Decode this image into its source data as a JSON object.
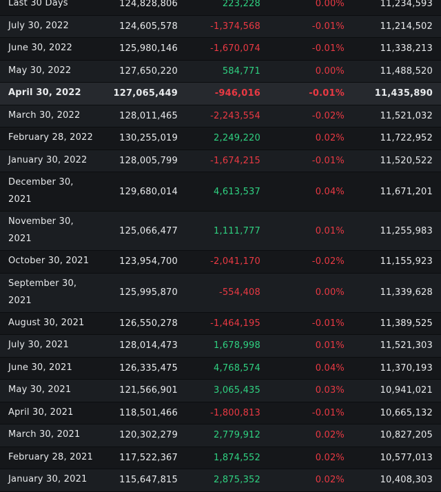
{
  "theme": {
    "bg": "#101214",
    "row_odd": "#15171a",
    "row_even": "#1b1e22",
    "row_highlight": "#26292e",
    "separator": "#0b0d0f",
    "text": "#e8eaec",
    "green": "#2fd181",
    "red": "#ea3943"
  },
  "table": {
    "rows": [
      {
        "date_lines": [
          "Last 30 Days"
        ],
        "supply": "124,828,806",
        "change": "223,228",
        "direction": "up",
        "percent": "0.00%",
        "secondary": "11,234,593"
      },
      {
        "date_lines": [
          "July 30, 2022"
        ],
        "supply": "124,605,578",
        "change": "-1,374,568",
        "direction": "down",
        "percent": "-0.01%",
        "secondary": "11,214,502"
      },
      {
        "date_lines": [
          "June 30, 2022"
        ],
        "supply": "125,980,146",
        "change": "-1,670,074",
        "direction": "down",
        "percent": "-0.01%",
        "secondary": "11,338,213"
      },
      {
        "date_lines": [
          "May 30, 2022"
        ],
        "supply": "127,650,220",
        "change": "584,771",
        "direction": "up",
        "percent": "0.00%",
        "secondary": "11,488,520"
      },
      {
        "date_lines": [
          "April 30, 2022"
        ],
        "supply": "127,065,449",
        "change": "-946,016",
        "direction": "down",
        "percent": "-0.01%",
        "secondary": "11,435,890",
        "highlighted": true
      },
      {
        "date_lines": [
          "March 30, 2022"
        ],
        "supply": "128,011,465",
        "change": "-2,243,554",
        "direction": "down",
        "percent": "-0.02%",
        "secondary": "11,521,032"
      },
      {
        "date_lines": [
          "February 28, 2022"
        ],
        "supply": "130,255,019",
        "change": "2,249,220",
        "direction": "up",
        "percent": "0.02%",
        "secondary": "11,722,952"
      },
      {
        "date_lines": [
          "January 30, 2022"
        ],
        "supply": "128,005,799",
        "change": "-1,674,215",
        "direction": "down",
        "percent": "-0.01%",
        "secondary": "11,520,522"
      },
      {
        "date_lines": [
          "December 30,",
          "2021"
        ],
        "supply": "129,680,014",
        "change": "4,613,537",
        "direction": "up",
        "percent": "0.04%",
        "secondary": "11,671,201"
      },
      {
        "date_lines": [
          "November 30,",
          "2021"
        ],
        "supply": "125,066,477",
        "change": "1,111,777",
        "direction": "up",
        "percent": "0.01%",
        "secondary": "11,255,983"
      },
      {
        "date_lines": [
          "October 30, 2021"
        ],
        "supply": "123,954,700",
        "change": "-2,041,170",
        "direction": "down",
        "percent": "-0.02%",
        "secondary": "11,155,923"
      },
      {
        "date_lines": [
          "September 30,",
          "2021"
        ],
        "supply": "125,995,870",
        "change": "-554,408",
        "direction": "down",
        "percent": "0.00%",
        "secondary": "11,339,628"
      },
      {
        "date_lines": [
          "August 30, 2021"
        ],
        "supply": "126,550,278",
        "change": "-1,464,195",
        "direction": "down",
        "percent": "-0.01%",
        "secondary": "11,389,525"
      },
      {
        "date_lines": [
          "July 30, 2021"
        ],
        "supply": "128,014,473",
        "change": "1,678,998",
        "direction": "up",
        "percent": "0.01%",
        "secondary": "11,521,303"
      },
      {
        "date_lines": [
          "June 30, 2021"
        ],
        "supply": "126,335,475",
        "change": "4,768,574",
        "direction": "up",
        "percent": "0.04%",
        "secondary": "11,370,193"
      },
      {
        "date_lines": [
          "May 30, 2021"
        ],
        "supply": "121,566,901",
        "change": "3,065,435",
        "direction": "up",
        "percent": "0.03%",
        "secondary": "10,941,021"
      },
      {
        "date_lines": [
          "April 30, 2021"
        ],
        "supply": "118,501,466",
        "change": "-1,800,813",
        "direction": "down",
        "percent": "-0.01%",
        "secondary": "10,665,132"
      },
      {
        "date_lines": [
          "March 30, 2021"
        ],
        "supply": "120,302,279",
        "change": "2,779,912",
        "direction": "up",
        "percent": "0.02%",
        "secondary": "10,827,205"
      },
      {
        "date_lines": [
          "February 28, 2021"
        ],
        "supply": "117,522,367",
        "change": "1,874,552",
        "direction": "up",
        "percent": "0.02%",
        "secondary": "10,577,013"
      },
      {
        "date_lines": [
          "January 30, 2021"
        ],
        "supply": "115,647,815",
        "change": "2,875,352",
        "direction": "up",
        "percent": "0.02%",
        "secondary": "10,408,303"
      }
    ]
  }
}
